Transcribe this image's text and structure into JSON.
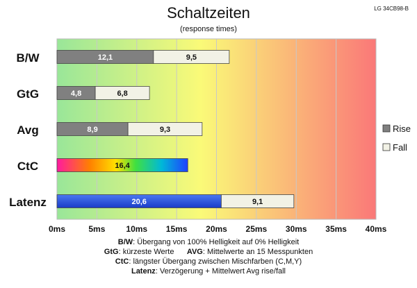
{
  "chart_data": {
    "type": "bar",
    "orientation": "horizontal",
    "stacked": true,
    "title": "Schaltzeiten",
    "subtitle": "(response times)",
    "model_label": "LG 34CB98-B",
    "categories": [
      "B/W",
      "GtG",
      "Avg",
      "CtC",
      "Latenz"
    ],
    "series": [
      {
        "name": "Rise",
        "values": [
          12.1,
          4.8,
          8.9,
          null,
          null
        ],
        "color": "#808080"
      },
      {
        "name": "Fall",
        "values": [
          9.5,
          6.8,
          9.3,
          null,
          9.1
        ],
        "color": "#f2f2e6"
      }
    ],
    "single_values": {
      "CtC": 16.4,
      "Latenz": 20.6
    },
    "value_labels": {
      "B/W": [
        "12,1",
        "9,5"
      ],
      "GtG": [
        "4,8",
        "6,8"
      ],
      "Avg": [
        "8,9",
        "9,3"
      ],
      "CtC": [
        "16,4"
      ],
      "Latenz": [
        "20,6",
        "9,1"
      ]
    },
    "xlim": [
      0,
      40
    ],
    "x_ticks": [
      "0ms",
      "5ms",
      "10ms",
      "15ms",
      "20ms",
      "25ms",
      "30ms",
      "35ms",
      "40ms"
    ],
    "grid": true,
    "legend": {
      "position": "right",
      "entries": [
        "Rise",
        "Fall"
      ]
    },
    "background_gradient": [
      "#99e699",
      "#fafa78",
      "#fa7878"
    ]
  },
  "notes": [
    {
      "label": "B/W",
      "text": ":  Übergang von 100% Helligkeit auf 0% Helligkeit"
    },
    {
      "label": "GtG",
      "text": ": kürzeste  Werte",
      "label2": "AVG",
      "text2": ": Mittelwerte an 15 Messpunkten"
    },
    {
      "label": "CtC",
      "text": ": längster Übergang  zwischen Mischfarben  (C,M,Y)"
    },
    {
      "label": "Latenz",
      "text": ": Verzögerung  + Mittelwert Avg rise/fall"
    }
  ]
}
